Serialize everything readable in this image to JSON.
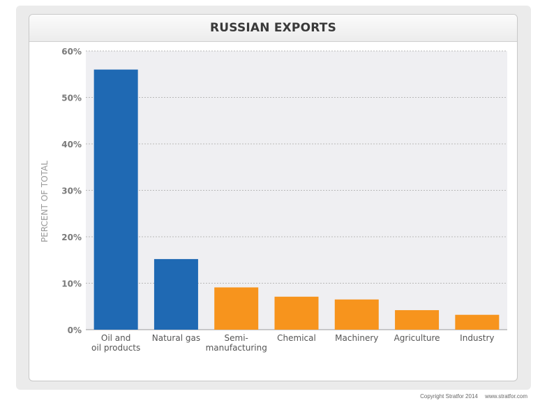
{
  "title": "RUSSIAN EXPORTS",
  "footer": {
    "copyright": "Copyright Stratfor 2014",
    "url": "www.stratfor.com"
  },
  "colors": {
    "blue": "#1f69b3",
    "orange": "#f7941d",
    "plot_bg": "#efeff2",
    "grid": "#b8b8b8",
    "tick_text": "#7a7a7a",
    "cat_text": "#555555",
    "ylabel_text": "#9a9a9a"
  },
  "chart_data": {
    "type": "bar",
    "title": "RUSSIAN EXPORTS",
    "xlabel": "",
    "ylabel": "PERCENT OF TOTAL",
    "ylim": [
      0,
      60
    ],
    "yticks": [
      "0%",
      "10%",
      "20%",
      "30%",
      "40%",
      "50%",
      "60%"
    ],
    "grid": true,
    "categories": [
      [
        "Oil and",
        "oil products"
      ],
      [
        "Natural gas"
      ],
      [
        "Semi-",
        "manufacturing"
      ],
      [
        "Chemical"
      ],
      [
        "Machinery"
      ],
      [
        "Agriculture"
      ],
      [
        "Industry"
      ]
    ],
    "values": [
      56,
      15.2,
      9.1,
      7.1,
      6.5,
      4.2,
      3.2
    ],
    "bar_colors": [
      "blue",
      "blue",
      "orange",
      "orange",
      "orange",
      "orange",
      "orange"
    ]
  }
}
